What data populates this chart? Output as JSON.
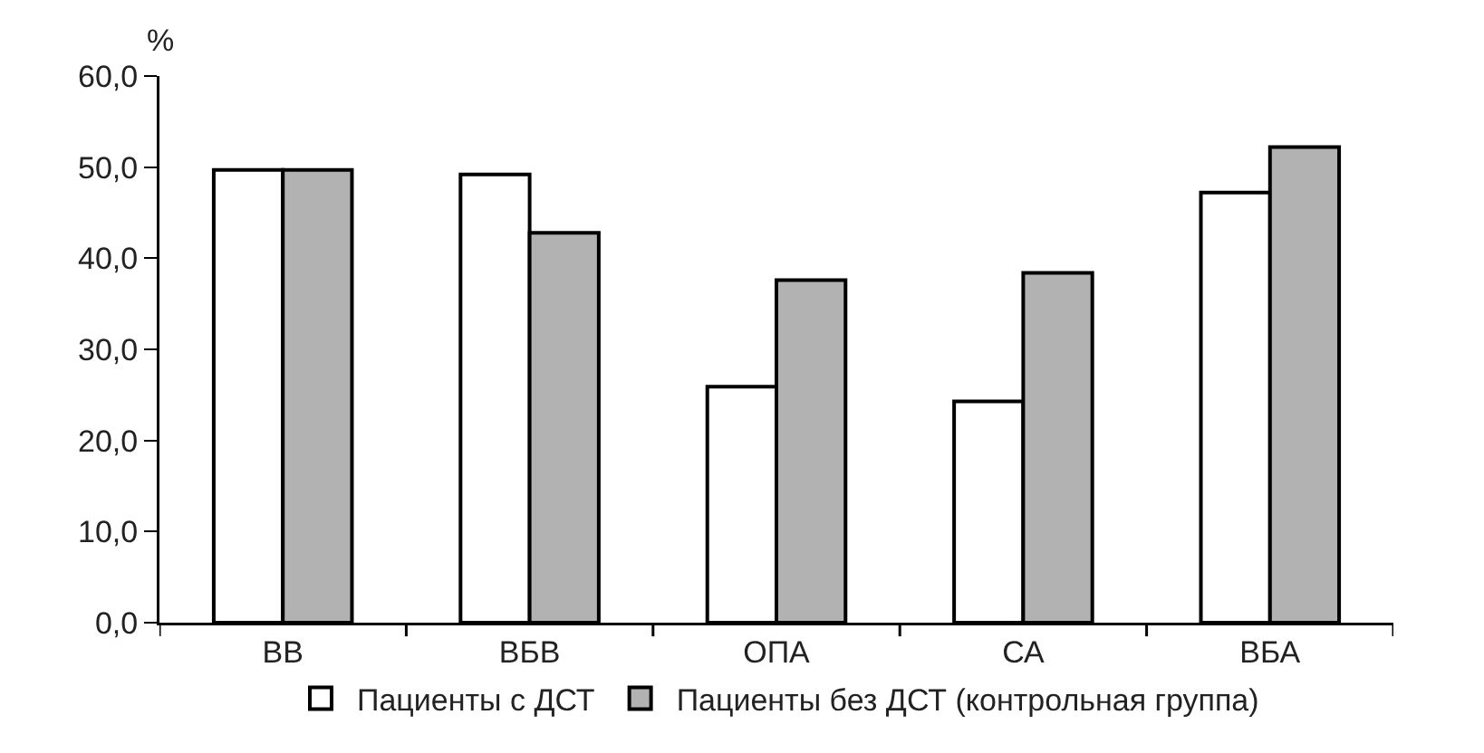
{
  "chart_data": {
    "type": "bar",
    "ylabel": "%",
    "categories": [
      "ВВ",
      "ВБВ",
      "ОПА",
      "СА",
      "ВБА"
    ],
    "series": [
      {
        "name": "Пациенты с ДСТ",
        "color": "#ffffff",
        "values": [
          49.7,
          49.2,
          25.9,
          24.3,
          47.2
        ]
      },
      {
        "name": "Пациенты без ДСТ (контрольная группа)",
        "color": "#b2b2b2",
        "values": [
          49.7,
          42.8,
          37.6,
          38.4,
          52.2
        ]
      }
    ],
    "ylim": [
      0,
      60
    ],
    "yticks": [
      {
        "value": 0,
        "label": "0,0"
      },
      {
        "value": 10,
        "label": "10,0"
      },
      {
        "value": 20,
        "label": "20,0"
      },
      {
        "value": 30,
        "label": "30,0"
      },
      {
        "value": 40,
        "label": "40,0"
      },
      {
        "value": 50,
        "label": "50,0"
      },
      {
        "value": 60,
        "label": "60,0"
      }
    ],
    "grid": false,
    "legend": "bottom"
  }
}
